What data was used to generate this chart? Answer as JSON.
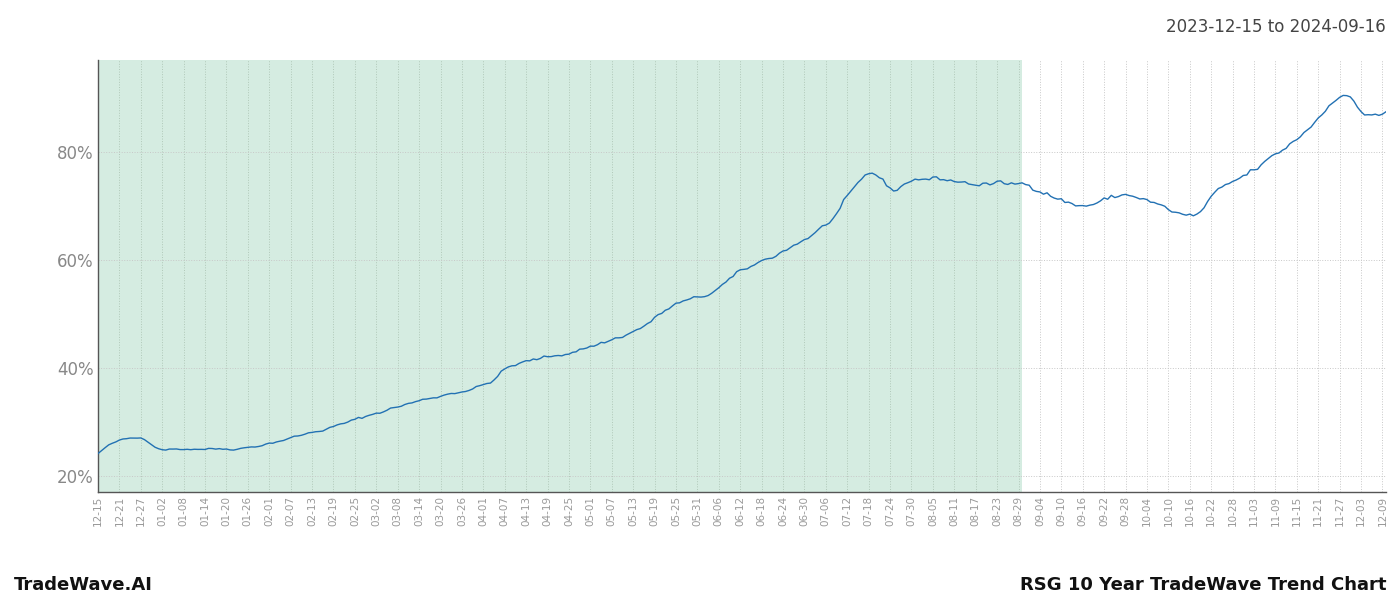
{
  "title_top_right": "2023-12-15 to 2024-09-16",
  "footer_left": "TradeWave.AI",
  "footer_right": "RSG 10 Year TradeWave Trend Chart",
  "line_color": "#2271b3",
  "shaded_color": "#d5ece1",
  "shaded_alpha": 1.0,
  "background_color": "#ffffff",
  "grid_color": "#b0c8b8",
  "grid_color_white": "#c8c8c8",
  "grid_linestyle": ":",
  "ytick_labels": [
    "20%",
    "40%",
    "60%",
    "80%"
  ],
  "ytick_values": [
    20,
    40,
    60,
    80
  ],
  "ylim": [
    17,
    97
  ],
  "footer_fontsize": 13,
  "title_fontsize": 12
}
